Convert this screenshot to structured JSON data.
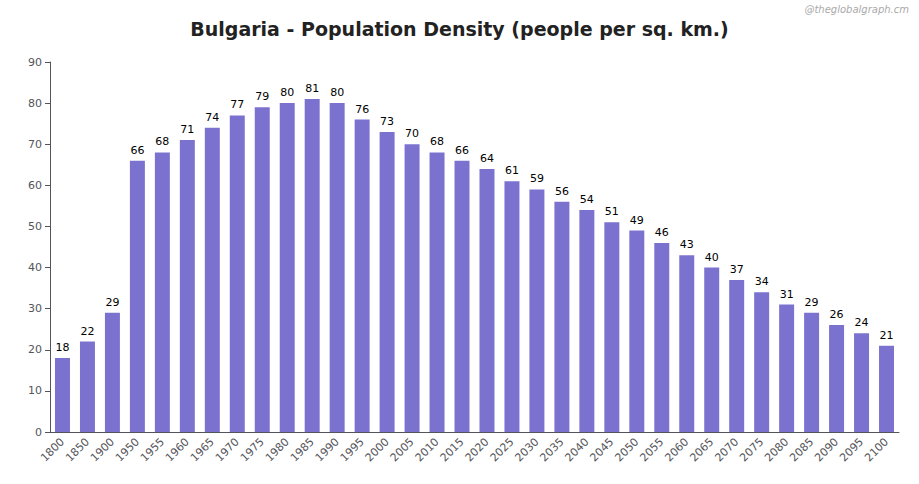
{
  "chart_data": {
    "type": "bar",
    "title": "Bulgaria - Population Density (people per sq. km.)",
    "annotation": "@theglobalgraph.cm",
    "categories": [
      1800,
      1850,
      1900,
      1950,
      1955,
      1960,
      1965,
      1970,
      1975,
      1980,
      1985,
      1990,
      1995,
      2000,
      2005,
      2010,
      2015,
      2020,
      2025,
      2030,
      2035,
      2040,
      2045,
      2050,
      2055,
      2060,
      2065,
      2070,
      2075,
      2080,
      2085,
      2090,
      2095,
      2100
    ],
    "values": [
      18,
      22,
      29,
      66,
      68,
      71,
      74,
      77,
      79,
      80,
      81,
      80,
      76,
      73,
      70,
      68,
      66,
      64,
      61,
      59,
      56,
      54,
      51,
      49,
      46,
      43,
      40,
      37,
      34,
      31,
      29,
      26,
      24,
      21
    ],
    "color": "#7B72D0",
    "ylim": [
      0,
      90
    ],
    "yticks": [
      0,
      10,
      20,
      30,
      40,
      50,
      60,
      70,
      80,
      90
    ],
    "data_labels": true,
    "grid": false
  }
}
